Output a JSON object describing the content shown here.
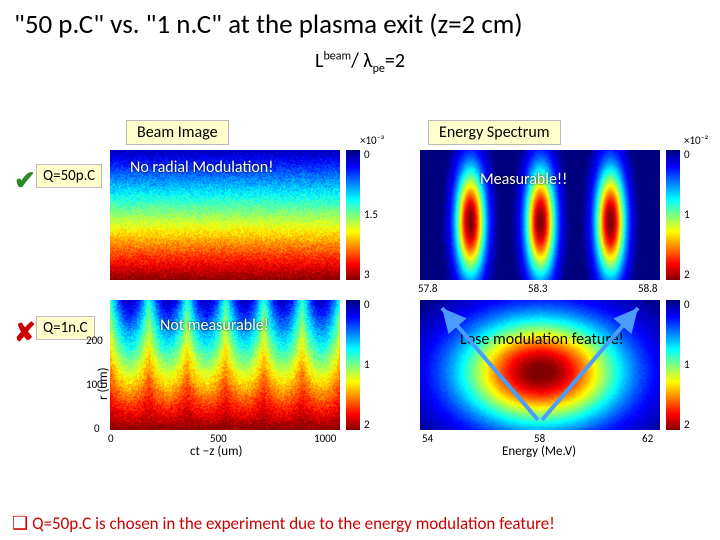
{
  "title": "\"50 p.C\" vs. \"1 n.C\" at the plasma exit (z=2 cm)",
  "subtitle_html": "L<sup>beam</sup>/ λ<sub>pe</sub>=2",
  "panels": {
    "left_header": "Beam Image",
    "right_header": "Energy Spectrum"
  },
  "rows": {
    "top": {
      "q": "Q=50p.C",
      "mark": "✔",
      "mark_class": "check",
      "left_overlay": "No radial Modulation!",
      "right_overlay": "Measurable!!"
    },
    "bot": {
      "q": "Q=1n.C",
      "mark": "✘",
      "mark_class": "cross",
      "left_overlay": "Not measurable!",
      "right_overlay": "Lose modulation feature!"
    }
  },
  "left_axis": {
    "xlabel": "ct −z  (um)",
    "ylabel": "r (um)",
    "xticks": [
      "0",
      "500",
      "1000"
    ],
    "yticks": [
      "200",
      "100",
      "0"
    ]
  },
  "right_axis": {
    "xlabel": "Energy (Me.V)",
    "top_ticks": [
      "57.8",
      "58.3",
      "58.8"
    ],
    "bot_ticks": [
      "54",
      "58",
      "62"
    ]
  },
  "cbars": {
    "left": {
      "top_scale": "×10⁻³",
      "ticks_top": [
        "0",
        "1.5",
        "3"
      ],
      "ticks_bot": [
        "0",
        "1",
        "2"
      ]
    },
    "right": {
      "top_scale": "×10⁻²",
      "ticks_top": [
        "0",
        "1",
        "2"
      ],
      "ticks_bot": [
        "0",
        "1",
        "2"
      ]
    }
  },
  "colors": {
    "jet_stops": [
      "#00007f",
      "#0000ff",
      "#007fff",
      "#00ffff",
      "#7fff7f",
      "#ffff00",
      "#ff7f00",
      "#ff0000",
      "#7f0000"
    ],
    "beam_grad": [
      "#ff0000",
      "#ff7f00",
      "#ffff00",
      "#7fff7f",
      "#00ffff",
      "#007fff",
      "#0000ff",
      "#00007f"
    ],
    "spec_bg": "#00007f",
    "arrow": "#4a9cff"
  },
  "conclusion": "Q=50p.C is chosen in the experiment due to the energy modulation feature!"
}
